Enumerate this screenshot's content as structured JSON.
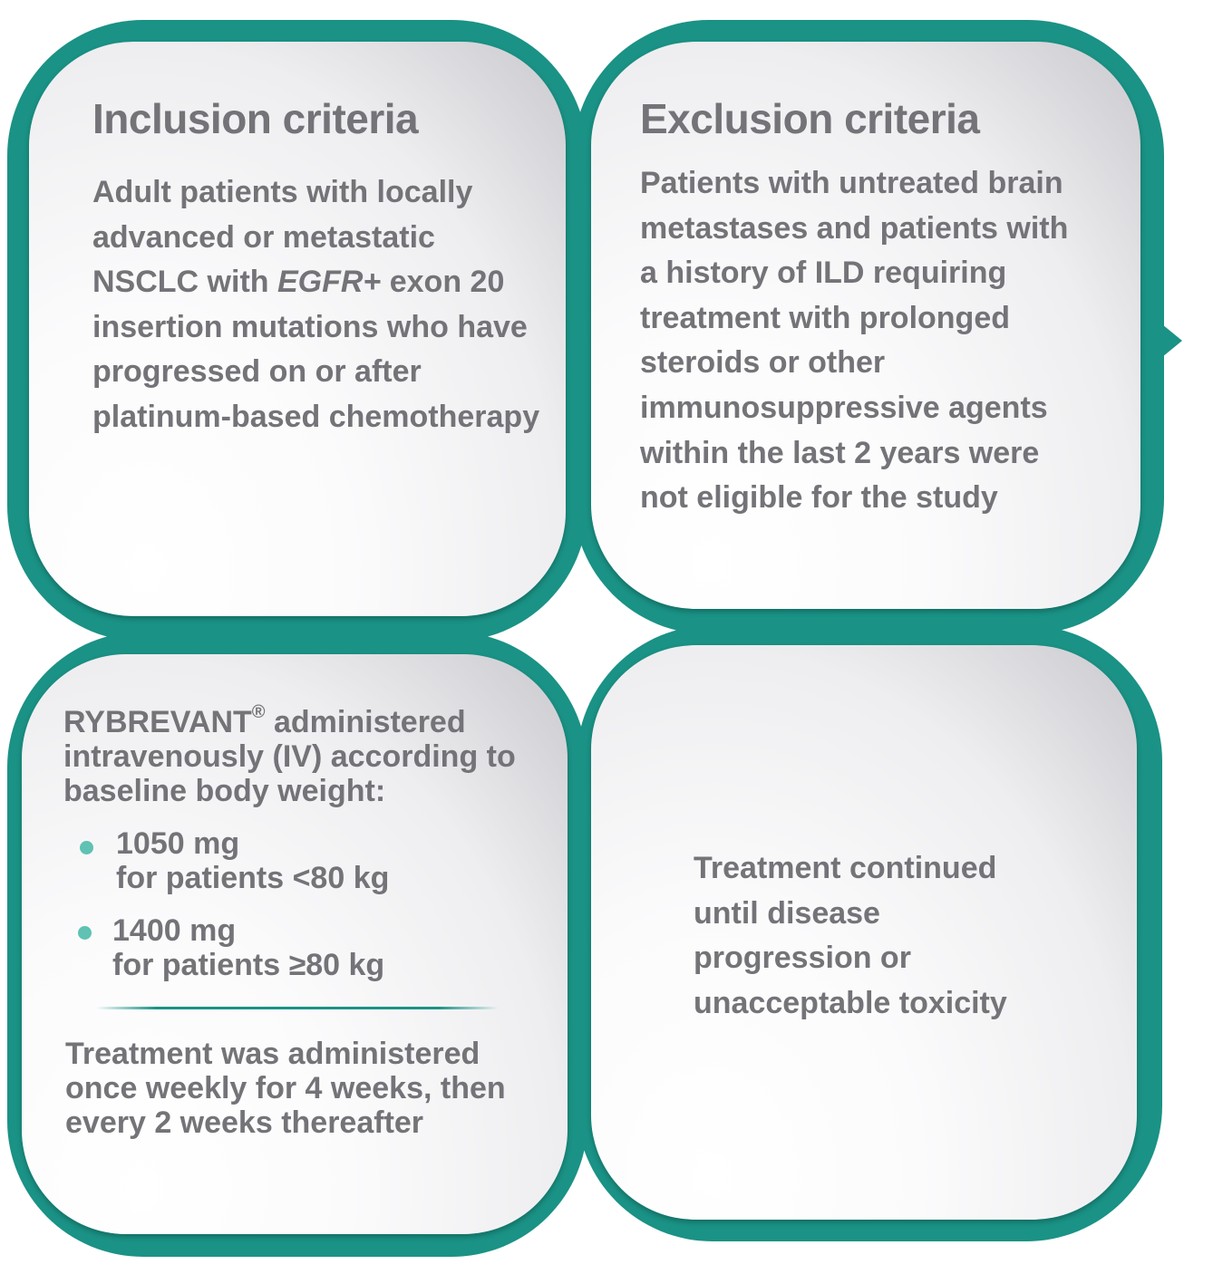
{
  "inclusion": {
    "title": "Inclusion criteria",
    "text_pre": "Adult patients with locally advanced or metastatic NSCLC with ",
    "text_italic": "EGFR+",
    "text_post": " exon 20 insertion mutations who have progressed on or after platinum-based chemotherapy"
  },
  "exclusion": {
    "title": "Exclusion criteria",
    "text": "Patients with untreated brain metastases and patients with a history of ILD requiring treatment with prolonged steroids or other immunosuppressive agents within the last 2 years were not eligible for the study"
  },
  "dosing": {
    "drug": "RYBREVANT",
    "reg_mark": "®",
    "intro_rest": " administered intravenously (IV) according to baseline body weight:",
    "bullets": [
      {
        "dose": "1050 mg",
        "condition": "for patients <80 kg"
      },
      {
        "dose": "1400 mg",
        "condition": "for patients ≥80 kg"
      }
    ],
    "schedule": "Treatment was administered once weekly for 4 weeks, then every 2 weeks thereafter"
  },
  "continuation": {
    "text": "Treatment continued until disease progression or unacceptable toxicity"
  },
  "colors": {
    "frame": "#1a9285",
    "text": "#737378",
    "bullet": "#5fc2b2"
  }
}
